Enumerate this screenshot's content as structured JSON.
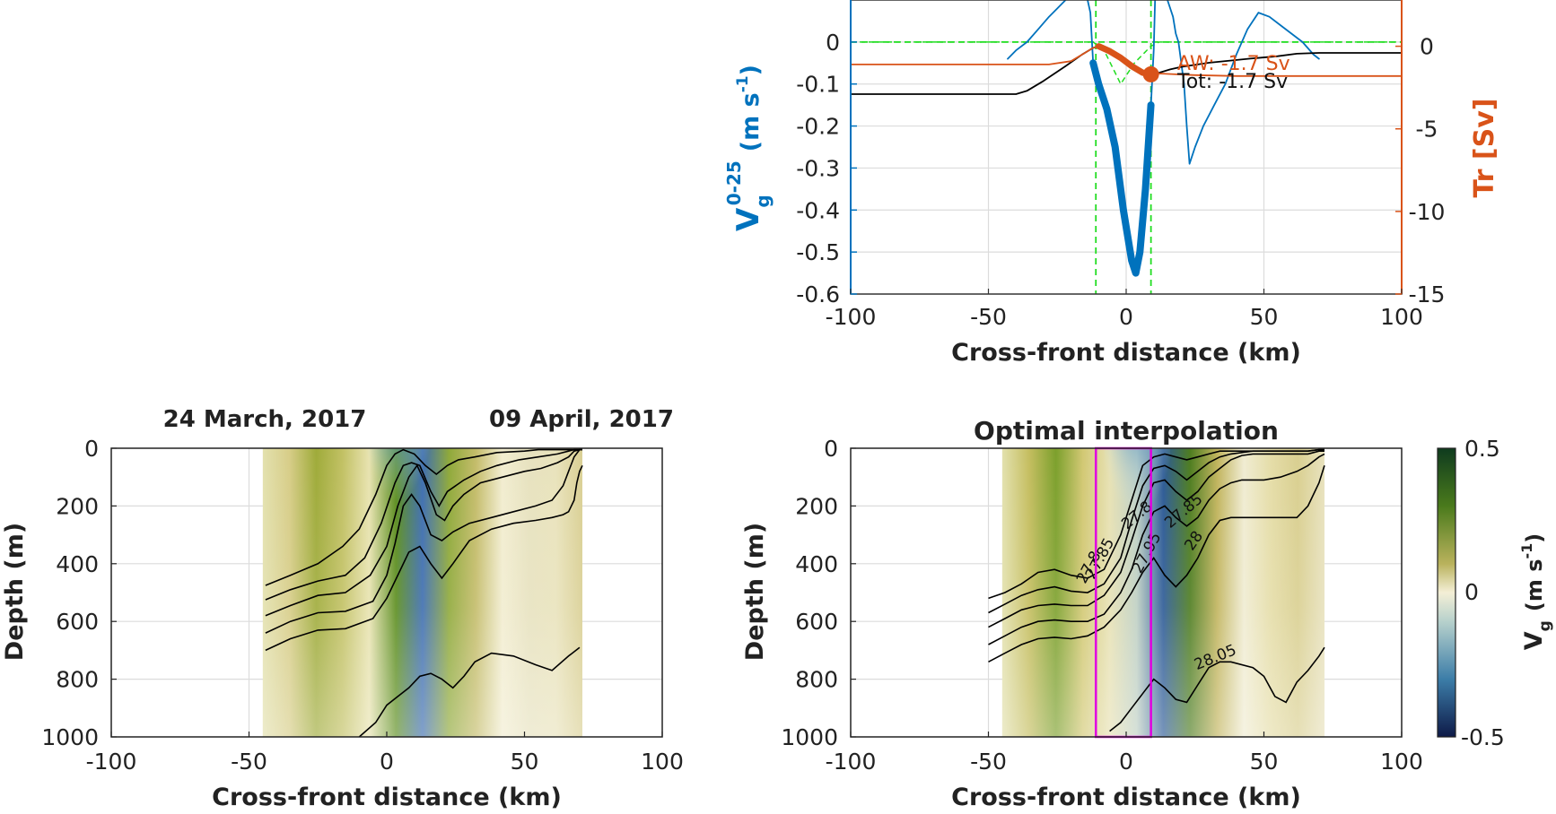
{
  "chart_data": [
    {
      "type": "line",
      "xlabel": "Cross-front distance (km)",
      "ylabel_left": "V",
      "ylabel_left_sup": "0-25",
      "ylabel_left_sub": "g",
      "ylabel_left_units": "(m s",
      "ylabel_left_units_exp": "-1",
      "ylabel_left_units_close": ")",
      "ylabel_right": "Tr [Sv]",
      "xlim": [
        -100,
        100
      ],
      "ylim_left": [
        -0.6,
        0.1
      ],
      "ylim_right": [
        -15,
        2.8
      ],
      "xticks": [
        "-100",
        "-50",
        "0",
        "50",
        "100"
      ],
      "yticks_left": [
        "0",
        "-0.1",
        "-0.2",
        "-0.3",
        "-0.4",
        "-0.5",
        "-0.6"
      ],
      "yticks_right": [
        "0",
        "-5",
        "-10",
        "-15"
      ],
      "annotations": [
        "AW: -1.7 Sv",
        "Tot: -1.7 Sv"
      ],
      "series": [
        {
          "role": "velocity",
          "color": "#0072BD",
          "x": [
            -43,
            -40,
            -36,
            -32,
            -28,
            -25,
            -22,
            -19,
            -16,
            -14,
            -13,
            -12,
            -10,
            -7,
            -4,
            -1,
            2,
            3.5,
            5,
            7,
            9,
            10,
            10.5
          ],
          "y": [
            -0.04,
            -0.02,
            0.0,
            0.03,
            0.06,
            0.08,
            0.1,
            0.12,
            0.12,
            0.1,
            0.07,
            -0.05,
            -0.1,
            -0.16,
            -0.25,
            -0.4,
            -0.52,
            -0.55,
            -0.5,
            -0.35,
            -0.15,
            -0.02,
            0.1
          ]
        },
        {
          "role": "velocity",
          "color": "#0072BD",
          "x": [
            15,
            17,
            18,
            19,
            20,
            21,
            22,
            23,
            25,
            28,
            32,
            36,
            40,
            44,
            48,
            52,
            56,
            60,
            64,
            68,
            70
          ],
          "y": [
            0.1,
            0.06,
            0.02,
            0.0,
            -0.05,
            -0.1,
            -0.2,
            -0.29,
            -0.25,
            -0.2,
            -0.15,
            -0.1,
            -0.03,
            0.03,
            0.07,
            0.06,
            0.04,
            0.02,
            0.0,
            -0.03,
            -0.04
          ]
        },
        {
          "role": "transport_total",
          "color": "#000000",
          "x": [
            -100,
            -40,
            -36,
            -30,
            -22,
            -16,
            -12,
            -10,
            -6,
            -2,
            2,
            6,
            9,
            12,
            16,
            20,
            30,
            45,
            55,
            62,
            70,
            100
          ],
          "y": [
            -2.9,
            -2.9,
            -2.7,
            -2.1,
            -1.2,
            -0.5,
            -0.1,
            0.0,
            -0.35,
            -0.8,
            -1.3,
            -1.65,
            -1.75,
            -1.6,
            -1.4,
            -1.25,
            -1.0,
            -0.75,
            -0.6,
            -0.45,
            -0.4,
            -0.4
          ]
        },
        {
          "role": "transport_aw",
          "color": "#D95319",
          "x": [
            -100,
            -40,
            -28,
            -20,
            -15,
            -12,
            -10,
            -6,
            -2,
            2,
            6,
            9,
            12,
            18,
            25,
            40,
            100
          ],
          "y": [
            -1.1,
            -1.1,
            -1.1,
            -0.9,
            -0.4,
            -0.1,
            0.0,
            -0.3,
            -0.7,
            -1.2,
            -1.6,
            -1.7,
            -1.65,
            -1.7,
            -1.75,
            -1.8,
            -1.8
          ]
        },
        {
          "role": "transport_aw_highlight",
          "color": "#D95319",
          "x": [
            -10,
            -6,
            -2,
            2,
            6,
            9
          ],
          "y": [
            0.0,
            -0.3,
            -0.7,
            -1.2,
            -1.6,
            -1.7
          ]
        }
      ],
      "aw_marker": {
        "x": 9,
        "y": -1.7
      },
      "green_curve": {
        "x": [
          -100,
          -16,
          -12,
          -8,
          -5,
          -2,
          0,
          3,
          6,
          9,
          12,
          15,
          100
        ],
        "y": [
          0,
          0,
          0,
          -0.02,
          -0.06,
          -0.1,
          -0.08,
          -0.05,
          -0.03,
          -0.01,
          0,
          0,
          0
        ]
      },
      "green_bounds_x": [
        -11,
        9
      ]
    },
    {
      "type": "heatmap",
      "title_left": "24 March, 2017",
      "title_right": "09 April, 2017",
      "xlabel": "Cross-front distance (km)",
      "ylabel": "Depth (m)",
      "xlim": [
        -100,
        100
      ],
      "ylim": [
        1000,
        0
      ],
      "xticks": [
        "-100",
        "-50",
        "0",
        "50",
        "100"
      ],
      "yticks": [
        "0",
        "200",
        "400",
        "600",
        "800",
        "1000"
      ],
      "data_extent_x": [
        -45,
        71
      ],
      "contours": [
        {
          "x": [
            -44,
            -35,
            -25,
            -16,
            -10,
            -4,
            0,
            3,
            6,
            10,
            14,
            18,
            22,
            26,
            32,
            40,
            50,
            55,
            60,
            64,
            68,
            70,
            71
          ],
          "y": [
            475,
            440,
            400,
            340,
            280,
            160,
            60,
            20,
            5,
            20,
            60,
            90,
            60,
            40,
            30,
            15,
            10,
            5,
            5,
            5,
            5,
            5,
            5
          ]
        },
        {
          "x": [
            -44,
            -35,
            -25,
            -15,
            -8,
            -2,
            3,
            6,
            9,
            12,
            16,
            19,
            22,
            28,
            34,
            40,
            48,
            55,
            62,
            66,
            68,
            70,
            71
          ],
          "y": [
            525,
            490,
            460,
            440,
            380,
            260,
            120,
            60,
            50,
            60,
            150,
            200,
            150,
            110,
            80,
            60,
            40,
            30,
            20,
            10,
            5,
            5,
            5
          ]
        },
        {
          "x": [
            -44,
            -35,
            -25,
            -15,
            -6,
            0,
            4,
            8,
            11,
            14,
            18,
            21,
            24,
            28,
            34,
            42,
            50,
            56,
            62,
            66,
            68,
            70,
            71
          ],
          "y": [
            580,
            545,
            510,
            500,
            440,
            340,
            200,
            100,
            60,
            120,
            230,
            250,
            200,
            160,
            120,
            100,
            80,
            70,
            50,
            30,
            10,
            5,
            5
          ]
        },
        {
          "x": [
            -44,
            -35,
            -25,
            -15,
            -5,
            0,
            3,
            6,
            9,
            12,
            16,
            20,
            24,
            30,
            38,
            46,
            54,
            60,
            64,
            66,
            68,
            70,
            71
          ],
          "y": [
            640,
            600,
            570,
            565,
            530,
            440,
            330,
            200,
            160,
            200,
            300,
            320,
            290,
            260,
            240,
            220,
            200,
            180,
            130,
            80,
            30,
            5,
            5
          ]
        },
        {
          "x": [
            -44,
            -35,
            -25,
            -15,
            -5,
            0,
            4,
            8,
            12,
            16,
            20,
            24,
            30,
            38,
            46,
            54,
            60,
            64,
            66,
            68,
            69,
            70,
            71
          ],
          "y": [
            700,
            660,
            630,
            625,
            590,
            520,
            440,
            360,
            340,
            400,
            450,
            400,
            320,
            280,
            260,
            250,
            240,
            230,
            220,
            180,
            120,
            80,
            60
          ]
        },
        {
          "x": [
            -10,
            -4,
            0,
            4,
            8,
            12,
            16,
            20,
            24,
            28,
            32,
            38,
            46,
            54,
            60,
            66,
            70
          ],
          "y": [
            1000,
            950,
            890,
            860,
            830,
            790,
            780,
            800,
            830,
            790,
            740,
            710,
            720,
            750,
            770,
            720,
            690
          ]
        }
      ],
      "stripe_colors": [
        "#E3E1AE",
        "#D7CD88",
        "#9FAB3A",
        "#C2C164",
        "#E8E3B0",
        "#5B8D1E",
        "#3E6EB0",
        "#8FA93A",
        "#C4BC6A",
        "#F2EDD0",
        "#E7E2BF",
        "#E9E3BC",
        "#D9CF93"
      ]
    },
    {
      "type": "heatmap",
      "title": "Optimal interpolation",
      "xlabel": "Cross-front distance (km)",
      "ylabel": "Depth (m)",
      "xlim": [
        -100,
        100
      ],
      "ylim": [
        1000,
        0
      ],
      "xticks": [
        "-100",
        "-50",
        "0",
        "50",
        "100"
      ],
      "yticks": [
        "0",
        "200",
        "400",
        "600",
        "800",
        "1000"
      ],
      "colorbar": {
        "label": "V",
        "label_sub": "g",
        "label_units": "(m s",
        "label_units_exp": "-1",
        "label_units_close": ")",
        "ticks": [
          "0.5",
          "0",
          "-0.5"
        ],
        "range": [
          -0.5,
          0.5
        ]
      },
      "box_x": [
        -11,
        9
      ],
      "contour_labels": [
        "27.8",
        "27.85",
        "27.8",
        "27.85",
        "27.95",
        "28",
        "28.05"
      ],
      "contours": [
        {
          "x": [
            -50,
            -44,
            -38,
            -32,
            -26,
            -20,
            -14,
            -8,
            -2,
            2,
            6,
            10,
            14,
            18,
            22,
            26,
            30,
            34,
            38,
            42,
            46,
            50,
            56,
            62,
            66,
            70,
            72
          ],
          "y": [
            520,
            500,
            470,
            430,
            420,
            440,
            450,
            420,
            300,
            180,
            60,
            30,
            20,
            30,
            40,
            30,
            20,
            10,
            10,
            10,
            10,
            10,
            10,
            10,
            10,
            5,
            5
          ]
        },
        {
          "x": [
            -50,
            -44,
            -38,
            -32,
            -26,
            -20,
            -14,
            -8,
            -2,
            2,
            6,
            10,
            14,
            18,
            22,
            26,
            30,
            34,
            38,
            42,
            46,
            50,
            56,
            62,
            66,
            70,
            72
          ],
          "y": [
            570,
            540,
            510,
            490,
            480,
            495,
            500,
            470,
            380,
            250,
            130,
            70,
            60,
            80,
            110,
            80,
            50,
            30,
            20,
            15,
            10,
            10,
            10,
            10,
            10,
            5,
            5
          ]
        },
        {
          "x": [
            -50,
            -44,
            -38,
            -32,
            -26,
            -20,
            -14,
            -8,
            -2,
            2,
            6,
            10,
            14,
            18,
            22,
            26,
            30,
            34,
            38,
            42,
            46,
            50,
            56,
            62,
            66,
            70,
            72
          ],
          "y": [
            620,
            590,
            560,
            545,
            540,
            545,
            545,
            510,
            430,
            320,
            200,
            120,
            110,
            150,
            180,
            150,
            100,
            70,
            40,
            25,
            20,
            20,
            20,
            20,
            20,
            10,
            10
          ]
        },
        {
          "x": [
            -50,
            -44,
            -38,
            -32,
            -26,
            -20,
            -14,
            -8,
            -2,
            2,
            6,
            10,
            14,
            18,
            22,
            26,
            30,
            34,
            38,
            42,
            46,
            50,
            56,
            62,
            66,
            70,
            72
          ],
          "y": [
            680,
            650,
            620,
            600,
            595,
            600,
            600,
            575,
            500,
            420,
            300,
            220,
            200,
            240,
            270,
            240,
            180,
            140,
            120,
            110,
            110,
            110,
            100,
            80,
            60,
            30,
            20
          ]
        },
        {
          "x": [
            -50,
            -44,
            -38,
            -32,
            -26,
            -20,
            -14,
            -8,
            -2,
            2,
            6,
            10,
            14,
            18,
            22,
            26,
            30,
            34,
            38,
            42,
            46,
            50,
            56,
            62,
            66,
            70,
            72
          ],
          "y": [
            740,
            710,
            680,
            660,
            655,
            660,
            650,
            620,
            560,
            500,
            430,
            380,
            440,
            480,
            440,
            380,
            300,
            250,
            240,
            240,
            240,
            240,
            240,
            240,
            200,
            120,
            60
          ]
        },
        {
          "x": [
            -6,
            -2,
            2,
            6,
            10,
            14,
            18,
            22,
            26,
            30,
            34,
            38,
            46,
            50,
            54,
            58,
            62,
            66,
            70,
            72
          ],
          "y": [
            980,
            950,
            900,
            850,
            800,
            830,
            870,
            880,
            820,
            760,
            740,
            740,
            760,
            790,
            860,
            880,
            810,
            770,
            720,
            690
          ]
        }
      ],
      "stripe_colors": [
        "#E3E1AE",
        "#C5BE60",
        "#7CA02C",
        "#D2C873",
        "#E7E1B3",
        "#BFD0C3",
        "#2C5A96",
        "#4E7D20",
        "#C1B45D",
        "#F0ECD2",
        "#E5DDA8",
        "#D9CF90",
        "#E8E2BE"
      ]
    }
  ]
}
